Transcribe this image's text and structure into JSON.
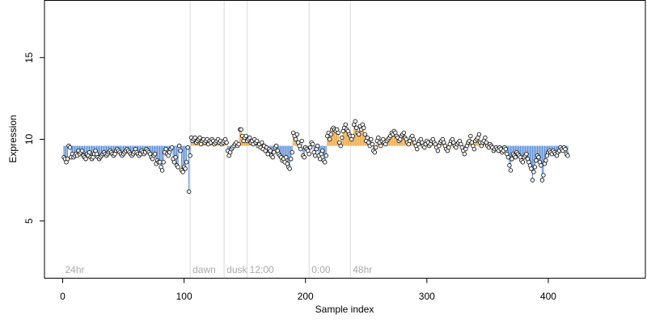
{
  "chart_data": {
    "type": "scatter",
    "title": "",
    "xlabel": "Sample index",
    "ylabel": "Expression",
    "xlim": [
      -15,
      480
    ],
    "ylim": [
      1.5,
      18.5
    ],
    "baseline": 9.6,
    "x_ticks": [
      0,
      100,
      200,
      300,
      400
    ],
    "y_ticks": [
      5,
      10,
      15
    ],
    "grid": false,
    "colors": {
      "above_baseline": "#f0a030",
      "below_baseline": "#5b8ed6",
      "point_edge": "#000000",
      "point_fill": "#ffffff",
      "marker_line": "#d9d9d9",
      "annotation": "#a9a9a9"
    },
    "markers": [
      {
        "x": 0,
        "label": "24hr",
        "line": false
      },
      {
        "x": 105,
        "label": "dawn",
        "line": true
      },
      {
        "x": 133,
        "label": "dusk",
        "line": true
      },
      {
        "x": 152,
        "label": "12:00",
        "line": true
      },
      {
        "x": 203,
        "label": "0:00",
        "line": true
      },
      {
        "x": 237,
        "label": "48hr",
        "line": true
      }
    ],
    "series": [
      {
        "x_start": 1,
        "y": [
          8.9,
          8.8,
          8.6,
          8.8,
          9.6,
          9.5,
          8.9,
          9.1,
          8.9,
          9.0,
          9.1,
          9.0,
          9.3,
          9.1,
          9.2,
          9.3,
          9.0,
          8.9,
          8.8,
          9.1,
          9.0,
          9.2,
          8.9,
          8.8,
          8.9,
          9.1,
          9.3,
          9.1,
          8.9,
          8.8,
          8.9,
          9.0,
          9.1,
          9.2,
          9.1,
          9.0,
          9.1,
          9.2,
          9.3,
          9.2,
          9.1,
          9.0,
          9.1,
          9.3,
          9.4,
          9.3,
          9.2,
          9.1,
          9.0,
          9.1,
          9.2,
          9.3,
          9.4,
          9.3,
          9.2,
          9.1,
          9.0,
          9.1,
          9.2,
          9.4,
          9.2,
          9.1,
          9.0,
          9.1,
          9.3,
          9.2,
          9.1,
          9.2,
          9.4,
          9.3,
          9.2,
          9.1,
          8.9,
          8.8,
          9.0,
          9.1,
          8.5,
          8.7,
          8.6,
          8.6,
          8.3,
          8.1,
          8.6,
          9.2,
          9.4,
          9.1,
          9.0,
          9.2,
          9.4,
          9.5,
          8.8,
          8.6,
          8.9,
          8.4,
          8.3,
          9.6,
          9.3,
          8.1,
          8.0,
          8.3,
          8.2,
          8.6,
          9.5,
          6.8,
          9.0,
          10.1,
          9.9,
          10.0,
          10.1,
          9.8,
          9.9,
          10.0,
          10.1,
          9.7,
          9.9,
          10.0,
          9.8,
          9.9,
          10.0,
          9.7,
          9.9,
          9.8,
          10.0,
          9.9,
          9.7,
          9.8,
          9.9,
          10.0,
          9.8,
          9.9,
          9.7,
          9.8,
          9.9,
          10.0,
          9.8,
          9.3,
          9.0,
          9.2,
          9.4,
          9.5,
          9.6,
          9.7,
          9.8,
          9.6,
          9.7,
          10.6,
          10.6,
          10.2,
          9.9,
          10.1,
          10.2,
          9.9,
          10.0,
          10.1,
          9.8,
          9.9,
          9.7,
          10.0,
          9.8,
          9.9,
          9.6,
          9.7,
          9.5,
          9.8,
          9.4,
          9.6,
          9.3,
          9.5,
          9.1,
          9.4,
          9.3,
          9.0,
          8.9,
          9.2,
          9.5,
          9.6,
          9.3,
          9.1,
          9.0,
          8.9,
          8.7,
          8.8,
          8.6,
          8.9,
          8.5,
          8.3,
          8.2,
          8.8,
          9.2,
          10.4,
          10.2,
          10.0,
          10.3,
          9.8,
          9.6,
          9.4,
          9.9,
          9.0,
          8.9,
          9.5,
          9.4,
          9.3,
          9.1,
          9.5,
          9.8,
          9.7,
          9.2,
          9.0,
          9.4,
          9.6,
          9.0,
          8.8,
          9.1,
          9.3,
          8.7,
          8.6,
          9.0,
          10.2,
          10.4,
          10.0,
          10.3,
          10.6,
          10.7,
          10.6,
          10.5,
          10.6,
          10.4,
          9.8,
          9.6,
          10.1,
          10.5,
          10.7,
          10.9,
          10.6,
          10.5,
          10.3,
          10.2,
          10.0,
          10.2,
          10.9,
          11.1,
          10.7,
          10.4,
          10.3,
          10.8,
          10.6,
          10.9,
          10.7,
          10.3,
          9.9,
          10.1,
          9.8,
          9.6,
          10.0,
          9.7,
          9.3,
          9.2,
          9.5,
          9.9,
          10.1,
          9.8,
          9.6,
          9.9,
          10.0,
          9.8,
          9.7,
          9.9,
          10.0,
          10.1,
          10.2,
          10.4,
          10.3,
          10.5,
          10.4,
          10.2,
          10.1,
          9.9,
          10.0,
          10.2,
          10.3,
          10.4,
          10.1,
          10.0,
          9.8,
          9.7,
          9.9,
          10.1,
          10.2,
          10.0,
          9.8,
          9.6,
          9.4,
          9.7,
          9.9,
          10.0,
          9.8,
          9.6,
          9.5,
          9.7,
          9.9,
          9.8,
          9.6,
          9.7,
          9.9,
          10.0,
          9.8,
          9.7,
          9.5,
          9.3,
          9.6,
          9.8,
          9.9,
          10.0,
          9.8,
          9.6,
          9.4,
          9.3,
          9.5,
          9.7,
          9.9,
          10.0,
          9.8,
          9.6,
          9.5,
          9.7,
          9.8,
          9.9,
          9.7,
          9.5,
          9.3,
          9.1,
          9.4,
          9.6,
          9.8,
          9.9,
          10.2,
          9.8,
          9.6,
          9.4,
          9.9,
          10.0,
          10.1,
          10.3,
          9.8,
          9.6,
          9.8,
          9.9,
          10.1,
          9.8,
          9.6,
          9.5,
          9.7,
          9.6,
          9.5,
          9.3,
          9.4,
          9.5,
          9.4,
          9.3,
          9.5,
          9.4,
          9.2,
          9.3,
          9.5,
          9.4,
          9.1,
          8.9,
          8.4,
          8.1,
          8.8,
          9.1,
          9.0,
          8.9,
          9.2,
          9.1,
          9.0,
          8.9,
          8.7,
          8.6,
          8.9,
          9.0,
          9.1,
          8.8,
          8.6,
          8.4,
          8.2,
          7.5,
          8.0,
          8.3,
          8.7,
          9.0,
          8.9,
          8.6,
          8.4,
          7.5,
          7.8,
          8.5,
          8.7,
          9.0,
          9.2,
          9.3,
          9.2,
          9.1,
          9.3,
          9.2,
          9.1,
          9.0,
          9.2,
          9.3,
          9.5,
          9.4,
          9.3,
          9.5,
          9.4,
          9.1,
          9.0
        ]
      }
    ]
  }
}
